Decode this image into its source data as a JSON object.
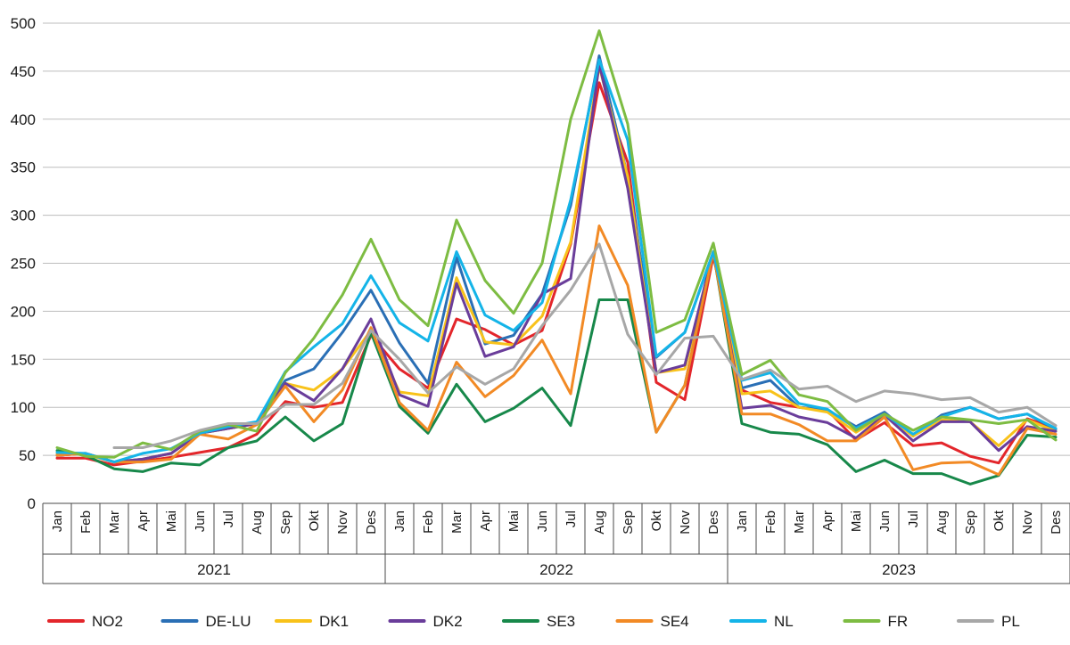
{
  "chart_data": {
    "type": "line",
    "title": "",
    "xlabel": "",
    "ylabel": "",
    "ylim": [
      0,
      500
    ],
    "yticks": [
      0,
      50,
      100,
      150,
      200,
      250,
      300,
      350,
      400,
      450,
      500
    ],
    "grid": "horizontal",
    "legend_position": "bottom",
    "groups": [
      {
        "label": "2021",
        "months": [
          "Jan",
          "Feb",
          "Mar",
          "Apr",
          "Mai",
          "Jun",
          "Jul",
          "Aug",
          "Sep",
          "Okt",
          "Nov",
          "Des"
        ]
      },
      {
        "label": "2022",
        "months": [
          "Jan",
          "Feb",
          "Mar",
          "Apr",
          "Mai",
          "Jun",
          "Jul",
          "Aug",
          "Sep",
          "Okt",
          "Nov",
          "Des"
        ]
      },
      {
        "label": "2023",
        "months": [
          "Jan",
          "Feb",
          "Mar",
          "Apr",
          "Mai",
          "Jun",
          "Jul",
          "Aug",
          "Sep",
          "Okt",
          "Nov",
          "Des"
        ]
      }
    ],
    "series": [
      {
        "name": "NO2",
        "color": "#e3262b",
        "values": [
          47,
          47,
          40,
          44,
          48,
          53,
          58,
          72,
          106,
          100,
          105,
          175,
          140,
          120,
          192,
          181,
          165,
          180,
          270,
          438,
          355,
          126,
          108,
          258,
          118,
          105,
          100,
          97,
          66,
          84,
          60,
          63,
          49,
          42,
          88,
          78
        ]
      },
      {
        "name": "DE-LU",
        "color": "#2a6fb5",
        "values": [
          50,
          52,
          43,
          46,
          52,
          73,
          78,
          83,
          128,
          140,
          178,
          222,
          167,
          125,
          256,
          166,
          175,
          218,
          310,
          466,
          340,
          152,
          178,
          262,
          120,
          128,
          100,
          97,
          80,
          95,
          70,
          92,
          100,
          88,
          93,
          77
        ]
      },
      {
        "name": "DK1",
        "color": "#f8c21a",
        "values": [
          52,
          51,
          43,
          46,
          52,
          73,
          78,
          83,
          125,
          118,
          140,
          180,
          116,
          112,
          235,
          168,
          165,
          195,
          272,
          455,
          340,
          136,
          140,
          262,
          114,
          117,
          100,
          95,
          74,
          92,
          70,
          87,
          85,
          60,
          87,
          75
        ]
      },
      {
        "name": "DK2",
        "color": "#6a3d9a",
        "values": [
          50,
          52,
          43,
          46,
          52,
          73,
          78,
          83,
          125,
          107,
          140,
          192,
          113,
          101,
          229,
          153,
          163,
          218,
          234,
          458,
          328,
          136,
          144,
          262,
          99,
          102,
          90,
          84,
          68,
          92,
          65,
          85,
          85,
          55,
          80,
          75
        ]
      },
      {
        "name": "SE3",
        "color": "#17884a",
        "values": [
          55,
          50,
          36,
          33,
          42,
          40,
          58,
          65,
          90,
          65,
          83,
          178,
          101,
          73,
          124,
          85,
          99,
          120,
          81,
          212,
          212,
          74,
          123,
          262,
          83,
          74,
          72,
          61,
          33,
          45,
          31,
          31,
          20,
          29,
          71,
          69
        ]
      },
      {
        "name": "SE4",
        "color": "#f28a25",
        "values": [
          50,
          52,
          43,
          43,
          46,
          72,
          67,
          82,
          122,
          85,
          118,
          183,
          105,
          76,
          147,
          111,
          133,
          170,
          114,
          289,
          227,
          74,
          123,
          262,
          93,
          93,
          82,
          65,
          65,
          90,
          35,
          42,
          43,
          30,
          78,
          72
        ]
      },
      {
        "name": "NL",
        "color": "#14b4e8",
        "values": [
          53,
          52,
          43,
          52,
          57,
          73,
          80,
          85,
          137,
          163,
          187,
          237,
          188,
          169,
          262,
          196,
          180,
          209,
          316,
          462,
          378,
          153,
          178,
          262,
          128,
          136,
          104,
          98,
          78,
          93,
          72,
          90,
          100,
          88,
          93,
          78
        ]
      },
      {
        "name": "FR",
        "color": "#7dbc42",
        "values": [
          58,
          49,
          48,
          63,
          56,
          75,
          82,
          75,
          136,
          172,
          217,
          275,
          212,
          185,
          295,
          232,
          198,
          250,
          400,
          492,
          395,
          178,
          191,
          271,
          134,
          149,
          113,
          106,
          76,
          93,
          76,
          90,
          87,
          83,
          87,
          66
        ]
      },
      {
        "name": "PL",
        "color": "#a7a7a7",
        "values": [
          null,
          null,
          58,
          58,
          65,
          76,
          83,
          83,
          103,
          103,
          125,
          180,
          150,
          115,
          142,
          124,
          140,
          185,
          222,
          270,
          176,
          134,
          172,
          174,
          129,
          139,
          119,
          122,
          106,
          117,
          114,
          108,
          110,
          95,
          100,
          81
        ]
      }
    ]
  }
}
